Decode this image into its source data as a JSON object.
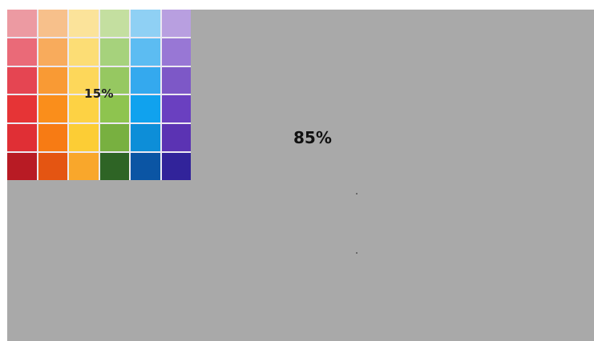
{
  "diagram": {
    "small_percent_label": "15%",
    "large_percent_label": "85%",
    "background_color": "#a9a9a9",
    "swatch_grid": {
      "rows": 6,
      "cols": 6,
      "colors": [
        [
          "#ec9aa2",
          "#f7c08b",
          "#fbe39a",
          "#c4dfa0",
          "#8fd0f4",
          "#b89fe0"
        ],
        [
          "#ea6a78",
          "#f8ab5c",
          "#fcdd75",
          "#a6d27c",
          "#5cbcf2",
          "#9877d5"
        ],
        [
          "#e54552",
          "#f99a34",
          "#fdd75a",
          "#96c861",
          "#34a9ee",
          "#7d58c7"
        ],
        [
          "#e63436",
          "#fa8e1b",
          "#fdd244",
          "#8ec44f",
          "#10a2ee",
          "#6a40c0"
        ],
        [
          "#e02f35",
          "#f77b14",
          "#fccd35",
          "#78b040",
          "#0d8ed8",
          "#5b33b3"
        ],
        [
          "#b81b24",
          "#e45512",
          "#f9a72b",
          "#2e6425",
          "#0b55a4",
          "#31239a"
        ]
      ]
    }
  }
}
